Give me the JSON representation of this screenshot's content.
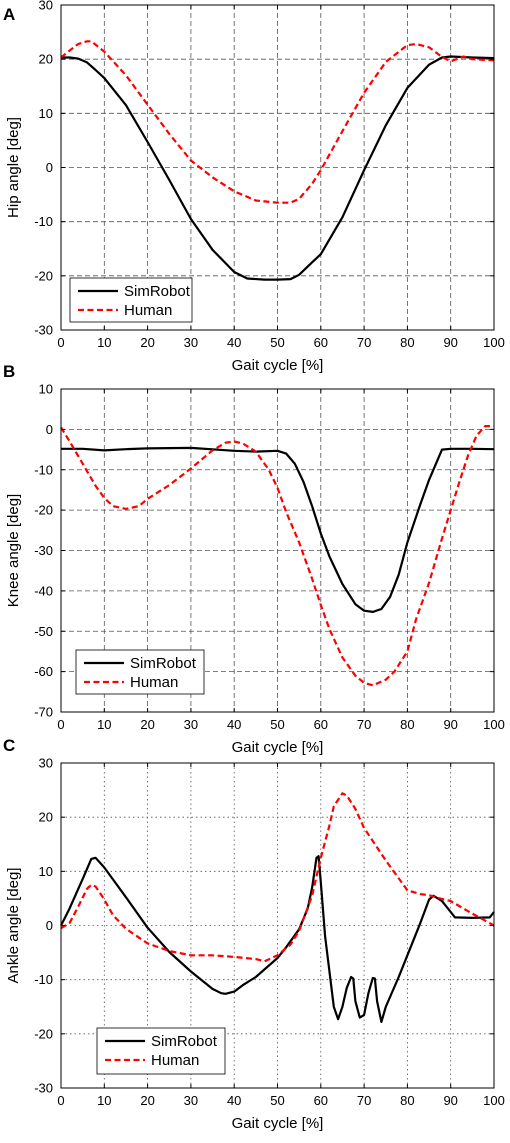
{
  "chart_data": [
    {
      "type": "line",
      "panel_label": "A",
      "xlabel": "Gait cycle [%]",
      "ylabel": "Hip angle [deg]",
      "xlim": [
        0,
        100
      ],
      "ylim": [
        -30,
        30
      ],
      "xticks": [
        0,
        10,
        20,
        30,
        40,
        50,
        60,
        70,
        80,
        90,
        100
      ],
      "yticks": [
        -30,
        -20,
        -10,
        0,
        10,
        20,
        30
      ],
      "grid": "dashed",
      "legend_position": "bottom-left",
      "series": [
        {
          "name": "SimRobot",
          "color": "#000000",
          "dash": "solid",
          "x": [
            0,
            2,
            4,
            6,
            8,
            10,
            15,
            20,
            25,
            30,
            35,
            40,
            43,
            47,
            50,
            53,
            55,
            58,
            60,
            65,
            70,
            75,
            80,
            85,
            88,
            90,
            95,
            100
          ],
          "y": [
            20.3,
            20.3,
            20.1,
            19.4,
            18,
            16.5,
            11.5,
            4.7,
            -2.3,
            -9.5,
            -15.2,
            -19.3,
            -20.5,
            -20.7,
            -20.7,
            -20.6,
            -19.8,
            -17.5,
            -16,
            -9.2,
            -0.5,
            7.8,
            14.7,
            19,
            20.3,
            20.5,
            20.3,
            20.2
          ]
        },
        {
          "name": "Human",
          "color": "#ff0000",
          "dash": "dashed",
          "x": [
            0,
            2,
            4,
            6,
            7,
            10,
            15,
            20,
            25,
            30,
            35,
            40,
            45,
            50,
            53,
            55,
            58,
            60,
            65,
            70,
            75,
            80,
            82,
            85,
            88,
            90,
            93,
            95,
            100
          ],
          "y": [
            20.3,
            21.6,
            22.8,
            23.3,
            23.3,
            21.4,
            17,
            11.6,
            6.2,
            1.3,
            -1.8,
            -4.4,
            -6.1,
            -6.5,
            -6.5,
            -5.8,
            -3,
            -0.5,
            6.7,
            13.8,
            19.5,
            22.6,
            22.8,
            22.2,
            20.4,
            19.6,
            20.5,
            20,
            19.8
          ]
        }
      ]
    },
    {
      "type": "line",
      "panel_label": "B",
      "xlabel": "Gait cycle [%]",
      "ylabel": "Knee angle [deg]",
      "xlim": [
        0,
        100
      ],
      "ylim": [
        -70,
        10
      ],
      "xticks": [
        0,
        10,
        20,
        30,
        40,
        50,
        60,
        70,
        80,
        90,
        100
      ],
      "yticks": [
        -70,
        -60,
        -50,
        -40,
        -30,
        -20,
        -10,
        0,
        10
      ],
      "grid": "dashed",
      "legend_position": "bottom-left",
      "series": [
        {
          "name": "SimRobot",
          "color": "#000000",
          "dash": "solid",
          "x": [
            0,
            5,
            10,
            15,
            20,
            30,
            40,
            45,
            50,
            52,
            54,
            56,
            58,
            60,
            62,
            65,
            68,
            70,
            72,
            74,
            76,
            78,
            80,
            83,
            85,
            87,
            88,
            90,
            95,
            100
          ],
          "y": [
            -4.8,
            -4.8,
            -5.2,
            -4.9,
            -4.7,
            -4.6,
            -5.3,
            -5.5,
            -5.3,
            -6,
            -8.5,
            -13,
            -19,
            -25.8,
            -31.5,
            -38.3,
            -43.3,
            -44.9,
            -45.2,
            -44.5,
            -41.5,
            -36,
            -28,
            -18.5,
            -12.5,
            -7.5,
            -5,
            -4.8,
            -4.8,
            -4.9
          ]
        },
        {
          "name": "Human",
          "color": "#ff0000",
          "dash": "dashed",
          "x": [
            0,
            2,
            5,
            8,
            10,
            12,
            15,
            18,
            20,
            25,
            30,
            35,
            38,
            40,
            42,
            45,
            48,
            50,
            52,
            55,
            58,
            60,
            62,
            65,
            68,
            70,
            72,
            75,
            77,
            80,
            82,
            85,
            88,
            90,
            92,
            94,
            96,
            98,
            100
          ],
          "y": [
            0.5,
            -3,
            -8.5,
            -14,
            -17,
            -19,
            -19.7,
            -19,
            -17.2,
            -13.8,
            -9.7,
            -5.2,
            -3.3,
            -3,
            -3.5,
            -5.5,
            -10,
            -14.5,
            -20.5,
            -28,
            -37,
            -43.5,
            -49.5,
            -56.5,
            -61,
            -62.8,
            -63.4,
            -62,
            -60,
            -55,
            -47,
            -38,
            -27,
            -20,
            -13,
            -6.5,
            -1.5,
            0.8,
            0.8
          ]
        }
      ]
    },
    {
      "type": "line",
      "panel_label": "C",
      "xlabel": "Gait cycle [%]",
      "ylabel": "Ankle angle [deg]",
      "xlim": [
        0,
        100
      ],
      "ylim": [
        -30,
        30
      ],
      "xticks": [
        0,
        10,
        20,
        30,
        40,
        50,
        60,
        70,
        80,
        90,
        100
      ],
      "yticks": [
        -30,
        -20,
        -10,
        0,
        10,
        20,
        30
      ],
      "grid": "dotted",
      "legend_position": "bottom-left",
      "series": [
        {
          "name": "SimRobot",
          "color": "#000000",
          "dash": "solid",
          "x": [
            0,
            2,
            5,
            7,
            8,
            10,
            15,
            20,
            25,
            30,
            35,
            37,
            38,
            40,
            42,
            45,
            50,
            52,
            55,
            57,
            58,
            59,
            59.5,
            60,
            61,
            63,
            64,
            65,
            66,
            67,
            67.5,
            68,
            69,
            70,
            71,
            72,
            72.5,
            73,
            74,
            75,
            78,
            80,
            83,
            85,
            86,
            88,
            90,
            91,
            95,
            99,
            100
          ],
          "y": [
            0,
            3.2,
            8.6,
            12.3,
            12.5,
            10.7,
            5.2,
            -0.4,
            -4.9,
            -8.5,
            -11.7,
            -12.5,
            -12.6,
            -12.2,
            -11,
            -9.5,
            -6,
            -4,
            -0.7,
            3.2,
            7,
            12.5,
            12.8,
            8,
            -2,
            -15,
            -17.3,
            -15,
            -11.5,
            -9.5,
            -9.8,
            -14,
            -17,
            -16.5,
            -12.5,
            -9.7,
            -9.8,
            -14,
            -17.8,
            -15,
            -9.5,
            -5.5,
            0.5,
            4.8,
            5.5,
            4.5,
            2.5,
            1.5,
            1.4,
            1.5,
            2.5
          ]
        },
        {
          "name": "Human",
          "color": "#ff0000",
          "dash": "dashed",
          "x": [
            0,
            2,
            4,
            6,
            7,
            8,
            10,
            12,
            15,
            20,
            25,
            30,
            35,
            40,
            45,
            47,
            50,
            53,
            55,
            58,
            60,
            62,
            63,
            65,
            66,
            68,
            70,
            75,
            80,
            83,
            85,
            88,
            90,
            95,
            100
          ],
          "y": [
            -0.5,
            0.5,
            3.5,
            6.8,
            7.5,
            7.2,
            4.8,
            1.9,
            -0.6,
            -3.3,
            -4.7,
            -5.5,
            -5.5,
            -5.8,
            -6.2,
            -6.6,
            -5.5,
            -3.5,
            -1,
            5.5,
            12.5,
            18.5,
            22,
            24.4,
            24,
            21.5,
            18,
            12,
            6.5,
            5.8,
            5.6,
            4.9,
            4.5,
            2.2,
            0
          ]
        }
      ]
    }
  ]
}
